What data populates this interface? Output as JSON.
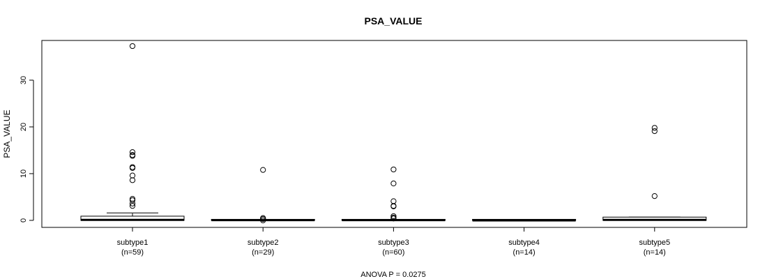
{
  "chart_data": {
    "type": "boxplot",
    "title": "PSA_VALUE",
    "ylabel": "PSA_VALUE",
    "xlabel": "",
    "footer": "ANOVA P = 0.0275",
    "ylim": [
      -1.5,
      38.5
    ],
    "yticks": [
      0,
      10,
      20,
      30
    ],
    "grid": false,
    "categories": [
      {
        "name": "subtype1",
        "n_label": "(n=59)",
        "q1": 0.0,
        "median": 0.1,
        "q3": 0.9,
        "whisker_low": 0.0,
        "whisker_high": 1.6,
        "outliers": [
          37.3,
          14.6,
          14.0,
          13.8,
          11.4,
          11.2,
          9.6,
          8.6,
          4.6,
          4.3,
          3.6,
          3.1
        ]
      },
      {
        "name": "subtype2",
        "n_label": "(n=29)",
        "q1": 0.0,
        "median": 0.05,
        "q3": 0.15,
        "whisker_low": 0.0,
        "whisker_high": 0.2,
        "outliers": [
          10.8,
          0.5,
          0.3,
          0.0
        ]
      },
      {
        "name": "subtype3",
        "n_label": "(n=60)",
        "q1": 0.0,
        "median": 0.05,
        "q3": 0.15,
        "whisker_low": 0.0,
        "whisker_high": 0.2,
        "outliers": [
          10.9,
          7.9,
          4.1,
          3.1,
          3.0,
          0.9,
          0.6,
          0.4
        ]
      },
      {
        "name": "subtype4",
        "n_label": "(n=14)",
        "q1": 0.0,
        "median": 0.0,
        "q3": 0.05,
        "whisker_low": 0.0,
        "whisker_high": 0.05,
        "outliers": []
      },
      {
        "name": "subtype5",
        "n_label": "(n=14)",
        "q1": 0.0,
        "median": 0.1,
        "q3": 0.7,
        "whisker_low": 0.0,
        "whisker_high": 0.7,
        "outliers": [
          19.8,
          19.1,
          5.2
        ]
      }
    ]
  }
}
